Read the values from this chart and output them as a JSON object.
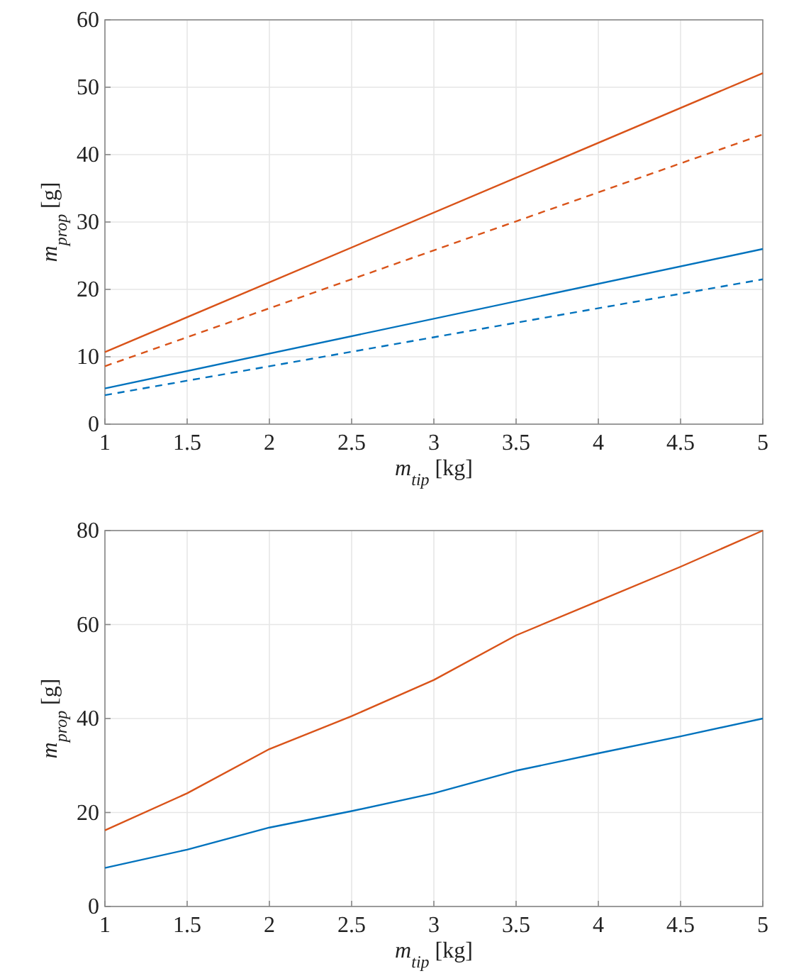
{
  "chart_data": [
    {
      "type": "line",
      "xlabel": "m$_{tip}$ [kg]",
      "ylabel": "m$_{prop}$ [g]",
      "xlim": [
        1,
        5
      ],
      "ylim": [
        0,
        60
      ],
      "xticks": [
        1,
        1.5,
        2,
        2.5,
        3,
        3.5,
        4,
        4.5,
        5
      ],
      "yticks": [
        0,
        10,
        20,
        30,
        40,
        50,
        60
      ],
      "grid": true,
      "x": [
        1,
        5
      ],
      "series": [
        {
          "color": "#d95319",
          "line_style": "solid",
          "values": [
            10.7,
            52.1
          ]
        },
        {
          "color": "#d95319",
          "line_style": "dashed",
          "values": [
            8.6,
            43
          ]
        },
        {
          "color": "#0072bd",
          "line_style": "solid",
          "values": [
            5.3,
            26
          ]
        },
        {
          "color": "#0072bd",
          "line_style": "dashed",
          "values": [
            4.3,
            21.5
          ]
        }
      ]
    },
    {
      "type": "line",
      "xlabel": "m$_{tip}$ [kg]",
      "ylabel": "m$_{prop}$ [g]",
      "xlim": [
        1,
        5
      ],
      "ylim": [
        0,
        80
      ],
      "xticks": [
        1,
        1.5,
        2,
        2.5,
        3,
        3.5,
        4,
        4.5,
        5
      ],
      "yticks": [
        0,
        20,
        40,
        60,
        80
      ],
      "grid": true,
      "x": [
        1,
        1.5,
        2,
        2.5,
        3,
        3.5,
        4,
        4.5,
        5
      ],
      "series": [
        {
          "color": "#d95319",
          "line_style": "solid",
          "values": [
            16.2,
            24.1,
            33.5,
            40.5,
            48.2,
            57.7,
            65,
            72.3,
            80
          ]
        },
        {
          "color": "#0072bd",
          "line_style": "solid",
          "values": [
            8.2,
            12.1,
            16.8,
            20.3,
            24.1,
            28.9,
            32.6,
            36.2,
            40
          ]
        }
      ]
    }
  ]
}
